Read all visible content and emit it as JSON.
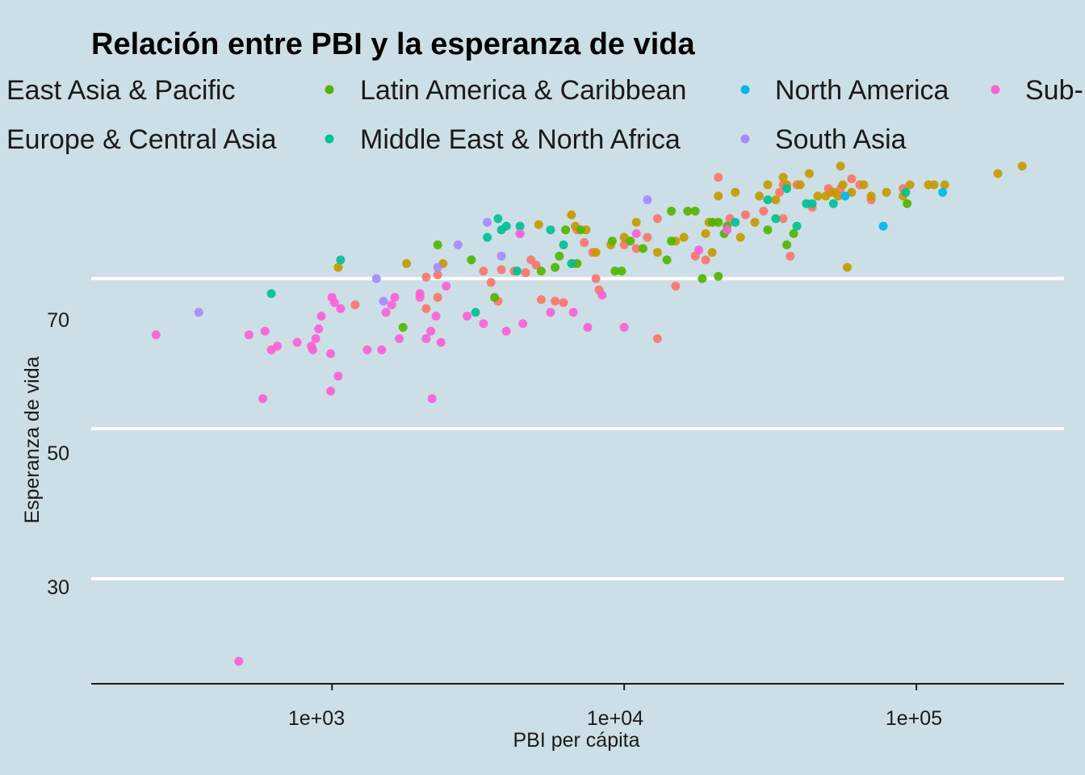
{
  "chart_data": {
    "type": "scatter",
    "title": "Relación entre  PBI y la esperanza de vida",
    "xlabel": "PBI per cápita",
    "ylabel": "Esperanza de vida",
    "xscale": "log10",
    "xlim": [
      150,
      320000
    ],
    "ylim": [
      16,
      84
    ],
    "xticks": [
      1000,
      10000,
      100000
    ],
    "xtick_labels": [
      "1e+03",
      "1e+04",
      "1e+05"
    ],
    "yticks": [
      30,
      50,
      70
    ],
    "ytick_labels": [
      "30",
      "50",
      "70"
    ],
    "grid": "horizontal-major",
    "legend_position": "top",
    "legend_entries": [
      "East Asia & Pacific",
      "Latin America & Caribbean",
      "North America",
      "Sub-",
      "Europe & Central Asia",
      "Middle East & North Africa",
      "South Asia"
    ],
    "colors": {
      "East Asia & Pacific": "#f8766d",
      "Europe & Central Asia": "#c49a00",
      "Latin America & Caribbean": "#53b400",
      "Middle East & North Africa": "#00c094",
      "North America": "#00b6eb",
      "South Asia": "#a58aff",
      "Sub-Saharan Africa": "#fb61d7"
    },
    "series": [
      {
        "name": "East Asia & Pacific",
        "points": [
          [
            1200,
            66.5
          ],
          [
            2100,
            66
          ],
          [
            2300,
            67.5
          ],
          [
            2100,
            70.2
          ],
          [
            2300,
            70.5
          ],
          [
            3300,
            71
          ],
          [
            3500,
            69.5
          ],
          [
            3700,
            67
          ],
          [
            3800,
            71.2
          ],
          [
            4200,
            71
          ],
          [
            4600,
            70.8
          ],
          [
            4800,
            72.5
          ],
          [
            5000,
            71.8
          ],
          [
            5200,
            67.2
          ],
          [
            5800,
            67
          ],
          [
            6200,
            66.8
          ],
          [
            6700,
            72
          ],
          [
            6900,
            76.5
          ],
          [
            7300,
            74.8
          ],
          [
            7800,
            73.5
          ],
          [
            8000,
            70
          ],
          [
            8200,
            68.5
          ],
          [
            10000,
            74.5
          ],
          [
            11000,
            74
          ],
          [
            12000,
            75.5
          ],
          [
            13000,
            78
          ],
          [
            13000,
            62
          ],
          [
            15000,
            69
          ],
          [
            17500,
            73
          ],
          [
            19000,
            72.5
          ],
          [
            20000,
            77.5
          ],
          [
            21000,
            83.5
          ],
          [
            23000,
            78
          ],
          [
            26000,
            78.5
          ],
          [
            30000,
            79
          ],
          [
            34000,
            81.5
          ],
          [
            35000,
            82.5
          ],
          [
            35000,
            78
          ],
          [
            37000,
            73
          ],
          [
            39000,
            82.5
          ],
          [
            44000,
            79.5
          ],
          [
            50000,
            82
          ],
          [
            51000,
            81.5
          ],
          [
            55000,
            82
          ],
          [
            60000,
            83.3
          ],
          [
            64000,
            82.5
          ],
          [
            70000,
            80.5
          ],
          [
            90000,
            82
          ]
        ]
      },
      {
        "name": "Europe & Central Asia",
        "points": [
          [
            1050,
            71.5
          ],
          [
            1800,
            72
          ],
          [
            2400,
            72
          ],
          [
            5100,
            77.2
          ],
          [
            6600,
            78.5
          ],
          [
            6800,
            77
          ],
          [
            7400,
            76.5
          ],
          [
            8000,
            73.5
          ],
          [
            9000,
            74.5
          ],
          [
            10000,
            75.5
          ],
          [
            11000,
            77.5
          ],
          [
            13000,
            73.5
          ],
          [
            15000,
            75
          ],
          [
            16000,
            75.5
          ],
          [
            19000,
            76
          ],
          [
            19500,
            77.5
          ],
          [
            20000,
            73.5
          ],
          [
            21000,
            81
          ],
          [
            24000,
            81.5
          ],
          [
            25000,
            75.5
          ],
          [
            28000,
            77.5
          ],
          [
            29000,
            81
          ],
          [
            31000,
            82.5
          ],
          [
            33000,
            80.5
          ],
          [
            35000,
            83.5
          ],
          [
            36000,
            82.5
          ],
          [
            40000,
            82.5
          ],
          [
            43000,
            84
          ],
          [
            46000,
            81
          ],
          [
            49000,
            81
          ],
          [
            52000,
            81.5
          ],
          [
            54000,
            81
          ],
          [
            55000,
            85
          ],
          [
            56000,
            82.5
          ],
          [
            58000,
            71.5
          ],
          [
            60000,
            81.5
          ],
          [
            66000,
            82.5
          ],
          [
            70000,
            81
          ],
          [
            79000,
            81.5
          ],
          [
            90000,
            81
          ],
          [
            95000,
            82.5
          ],
          [
            110000,
            82.5
          ],
          [
            115000,
            82.5
          ],
          [
            125000,
            82.5
          ],
          [
            190000,
            84
          ],
          [
            230000,
            85
          ]
        ]
      },
      {
        "name": "Latin America & Caribbean",
        "points": [
          [
            1750,
            63.5
          ],
          [
            2300,
            74.5
          ],
          [
            3000,
            72.5
          ],
          [
            3600,
            67.5
          ],
          [
            5200,
            71
          ],
          [
            5800,
            71.5
          ],
          [
            6000,
            73
          ],
          [
            6300,
            76.5
          ],
          [
            6900,
            72
          ],
          [
            7100,
            76.5
          ],
          [
            9100,
            75
          ],
          [
            9300,
            71
          ],
          [
            9800,
            71
          ],
          [
            10500,
            75
          ],
          [
            11600,
            74
          ],
          [
            14000,
            72.5
          ],
          [
            14500,
            75
          ],
          [
            14500,
            79
          ],
          [
            16500,
            79
          ],
          [
            17500,
            79
          ],
          [
            18500,
            70
          ],
          [
            20000,
            77.5
          ],
          [
            21000,
            77.5
          ],
          [
            21000,
            70.3
          ],
          [
            22000,
            76
          ],
          [
            22500,
            77
          ],
          [
            31000,
            76.5
          ],
          [
            36000,
            74.5
          ],
          [
            38000,
            76
          ],
          [
            93000,
            80
          ]
        ]
      },
      {
        "name": "Middle East & North Africa",
        "points": [
          [
            620,
            68
          ],
          [
            1070,
            72.5
          ],
          [
            3100,
            65.5
          ],
          [
            3400,
            75.5
          ],
          [
            3700,
            78
          ],
          [
            3800,
            76.5
          ],
          [
            3950,
            77
          ],
          [
            4300,
            71
          ],
          [
            4400,
            77
          ],
          [
            5600,
            76.5
          ],
          [
            6200,
            74.5
          ],
          [
            6600,
            72
          ],
          [
            24000,
            77.5
          ],
          [
            31000,
            80.5
          ],
          [
            33000,
            78
          ],
          [
            36000,
            82
          ],
          [
            39000,
            77
          ],
          [
            42000,
            80
          ],
          [
            44000,
            80
          ],
          [
            52000,
            80
          ],
          [
            92000,
            81.5
          ]
        ]
      },
      {
        "name": "North America",
        "points": [
          [
            57000,
            81
          ],
          [
            77000,
            77
          ],
          [
            123000,
            81.5
          ]
        ]
      },
      {
        "name": "South Asia",
        "points": [
          [
            350,
            65.5
          ],
          [
            1420,
            70
          ],
          [
            1500,
            67
          ],
          [
            2300,
            71.5
          ],
          [
            2700,
            74.5
          ],
          [
            3400,
            77.5
          ],
          [
            3800,
            73
          ],
          [
            4400,
            76
          ],
          [
            12000,
            80.5
          ]
        ]
      },
      {
        "name": "Sub-Saharan Africa",
        "points": [
          [
            250,
            62.5
          ],
          [
            480,
            19
          ],
          [
            520,
            62.5
          ],
          [
            580,
            54
          ],
          [
            590,
            63
          ],
          [
            620,
            60.5
          ],
          [
            650,
            61
          ],
          [
            760,
            61.5
          ],
          [
            850,
            61
          ],
          [
            860,
            60.5
          ],
          [
            880,
            62
          ],
          [
            900,
            63.3
          ],
          [
            920,
            65
          ],
          [
            990,
            60
          ],
          [
            990,
            55
          ],
          [
            1000,
            67.5
          ],
          [
            1020,
            66.8
          ],
          [
            1050,
            57
          ],
          [
            1070,
            66
          ],
          [
            1320,
            60.5
          ],
          [
            1480,
            60.5
          ],
          [
            1530,
            65.5
          ],
          [
            1600,
            66.5
          ],
          [
            1640,
            67.5
          ],
          [
            1700,
            62
          ],
          [
            2000,
            68
          ],
          [
            2000,
            67.5
          ],
          [
            2100,
            62
          ],
          [
            2180,
            63
          ],
          [
            2200,
            54
          ],
          [
            2270,
            65
          ],
          [
            2360,
            61.5
          ],
          [
            2460,
            69
          ],
          [
            2900,
            65
          ],
          [
            3300,
            64
          ],
          [
            3950,
            63
          ],
          [
            4400,
            76
          ],
          [
            4500,
            64
          ],
          [
            5600,
            65.5
          ],
          [
            6700,
            65.5
          ],
          [
            7500,
            63.5
          ],
          [
            8400,
            67.8
          ],
          [
            10000,
            63.5
          ],
          [
            11000,
            76
          ],
          [
            18000,
            73.8
          ],
          [
            22500,
            76.5
          ]
        ]
      }
    ]
  }
}
